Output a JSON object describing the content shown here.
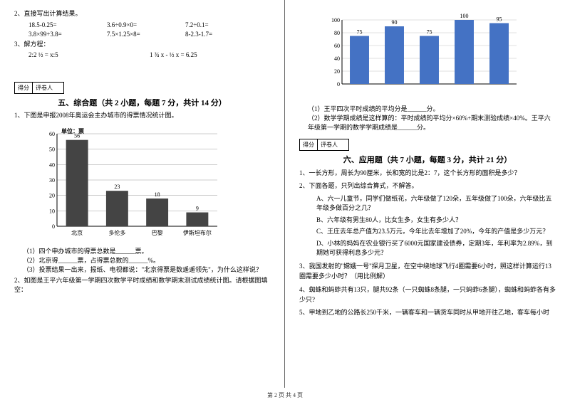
{
  "left": {
    "q2_title": "2、直接写出计算结果。",
    "eq_rows": [
      [
        "18.5-0.25=",
        "3.6÷0.9×0=",
        "7.2÷0.1="
      ],
      [
        "3.8×99+3.8=",
        "7.5×1.25×8=",
        "8-2.3-1.7="
      ]
    ],
    "q3_title": "3、解方程：",
    "eq3": [
      "2:2 ½ = x:5",
      "1 ¾ x - ½ x = 6.25"
    ],
    "score_labels": [
      "得分",
      "评卷人"
    ],
    "section5_title": "五、综合题（共 2 小题，每题 7 分，共计 14 分）",
    "q5_1": "1、下图是申报2008年奥运会主办城市的得票情况统计图。",
    "chart1": {
      "unit_label": "单位：票",
      "ymax": 60,
      "ystep": 10,
      "bars": [
        {
          "label": "北京",
          "value": 56,
          "color": "#444"
        },
        {
          "label": "多伦多",
          "value": 23,
          "color": "#444"
        },
        {
          "label": "巴黎",
          "value": 18,
          "color": "#444"
        },
        {
          "label": "伊斯坦布尔",
          "value": 9,
          "color": "#444"
        }
      ],
      "grid_color": "#999"
    },
    "q5_1_subs": [
      "（1）四个申办城市的得票总数是______票。",
      "（2）北京得______票，占得票总数的______%。",
      "（3）投票结果一出来，报纸、电视都说：\"北京得票是数遥遥领先\"，为什么这样说？"
    ],
    "q5_2": "2、如图是王平六年级第一学期四次数学平时成绩和数学期末测试成绩统计图。请根据图填空："
  },
  "right": {
    "chart2": {
      "ymax": 100,
      "ystep": 20,
      "bars": [
        {
          "label": "",
          "value": 75,
          "color": "#4472c4"
        },
        {
          "label": "",
          "value": 90,
          "color": "#4472c4"
        },
        {
          "label": "",
          "value": 75,
          "color": "#4472c4"
        },
        {
          "label": "",
          "value": 100,
          "color": "#4472c4"
        },
        {
          "label": "",
          "value": 95,
          "color": "#4472c4"
        }
      ],
      "grid_color": "#c0c0c0"
    },
    "q2_subs": [
      "（1）王平四次平时成绩的平均分是______分。",
      "（2）数学学期成绩是这样算的：平时成绩的平均分×60%+期末测验成绩×40%。王平六年级第一学期的数学学期成绩是______分。"
    ],
    "score_labels": [
      "得分",
      "评卷人"
    ],
    "section6_title": "六、应用题（共 7 小题，每题 3 分，共计 21 分）",
    "q6": [
      "1、一长方形，周长为90厘米，长和宽的比是2：7，这个长方形的面积是多少？",
      "2、下面各题，只列出综合算式，不解答。"
    ],
    "q6_2_subs": [
      "A、六一儿童节，同学们做纸花，六年级做了120朵，五年级做了100朵，六年级比五年级多做百分之几？",
      "B、六年级有男生80人，比女生多，女生有多少人？",
      "C、王庄去年总产值为23.5万元，今年比去年增加了20%，今年的产值是多少万元？",
      "D、小林的妈妈在农业银行买了6000元国家建设债券，定期3年，年利率为2.89%，到期她可获得利息多少元？"
    ],
    "q6_tail": [
      "3、我国发射的\"嫦娥一号\"探月卫星，在空中绕地球飞行4圈需要6小时，照这样计算运行13圈需要多少小时？（用比例解）",
      "4、蜘蛛和蚂蚱共有13只，腿共92条（一只蜘蛛8条腿，一只蚂蚱6条腿），蜘蛛和蚂蚱各有多少只?",
      "5、甲地到乙地的公路长250千米，一辆客车和一辆货车同时从甲地开往乙地，客车每小时"
    ]
  },
  "footer": "第 2 页 共 4 页"
}
